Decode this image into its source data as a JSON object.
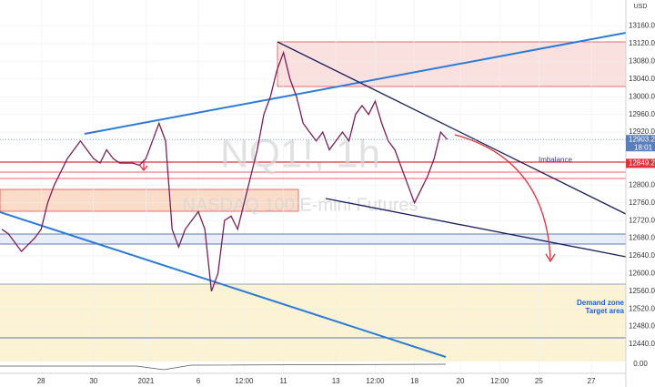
{
  "chart_data": {
    "type": "line",
    "currency": "USD",
    "watermark_symbol": "NQ1!, 1h",
    "watermark_name": "NASDAQ 100 E-mini Futures",
    "annotations": [
      "Imbalance",
      "Demand zone",
      "Target area"
    ],
    "last_price_label": "12903.25",
    "countdown": "18:01",
    "level_label": "12849.25",
    "indicator_label": "0.00",
    "categories": [
      null,
      null,
      null,
      null,
      null,
      null,
      "28",
      null,
      null,
      null,
      null,
      null,
      null,
      null,
      "30",
      null,
      null,
      null,
      null,
      null,
      null,
      null,
      "2021",
      null,
      null,
      null,
      null,
      null,
      null,
      null,
      "6",
      null,
      null,
      null,
      null,
      null,
      null,
      "12:00",
      null,
      null,
      null,
      null,
      null,
      "11",
      null,
      null,
      null,
      null,
      null,
      null,
      null,
      "13",
      null,
      null,
      null,
      null,
      null,
      "12:00",
      null,
      null,
      null,
      null,
      null,
      "18",
      null,
      null,
      null,
      null,
      null,
      null,
      "20",
      null,
      null,
      null,
      null,
      null,
      "12:00",
      null,
      null,
      null,
      null,
      null,
      "25",
      null,
      null,
      null,
      null,
      null,
      null,
      null,
      "27",
      null,
      null,
      null,
      null,
      null
    ],
    "series": [
      {
        "color": "#7b1e5a",
        "values": [
          12700,
          12690,
          12670,
          12650,
          12665,
          12680,
          12700,
          12760,
          12800,
          12830,
          12860,
          12880,
          12900,
          12880,
          12860,
          12850,
          12880,
          12860,
          12850,
          12850,
          12850,
          12845,
          12860,
          12900,
          12940,
          12900,
          12700,
          12660,
          12700,
          12720,
          12740,
          12700,
          12560,
          12600,
          12720,
          12730,
          12700,
          12760,
          12820,
          12880,
          12960,
          13000,
          13060,
          13100,
          13040,
          13000,
          12940,
          12920,
          12900,
          12920,
          12880,
          12900,
          12920,
          12900,
          12960,
          12980,
          12960,
          12990,
          12940,
          12900,
          12880,
          12840,
          12800,
          12760,
          12790,
          12820,
          12860,
          12920,
          12903.25,
          null,
          null,
          null,
          null,
          null,
          null,
          null,
          null,
          null,
          null,
          null,
          null,
          null,
          null,
          null,
          null,
          null,
          null,
          null,
          null,
          null,
          null,
          null,
          null,
          null,
          null,
          null
        ]
      }
    ],
    "ylim": [
      12405,
      13219
    ],
    "yticks": [
      {
        "value": 12440,
        "label": "12440.00"
      },
      {
        "value": 12480,
        "label": "12480.00"
      },
      {
        "value": 12520,
        "label": "12520.00"
      },
      {
        "value": 12560,
        "label": "12560.00"
      },
      {
        "value": 12600,
        "label": "12600.00"
      },
      {
        "value": 12640,
        "label": "12640.00"
      },
      {
        "value": 12680,
        "label": "12680.00"
      },
      {
        "value": 12720,
        "label": "12720.00"
      },
      {
        "value": 12760,
        "label": "12760.00"
      },
      {
        "value": 12800,
        "label": "12800.00"
      },
      {
        "value": 12920,
        "label": "12920.00"
      },
      {
        "value": 12960,
        "label": "12960.00"
      },
      {
        "value": 13000,
        "label": "13000.00"
      },
      {
        "value": 13040,
        "label": "13040.00"
      },
      {
        "value": 13080,
        "label": "13080.00"
      },
      {
        "value": 13120,
        "label": "13120.00"
      },
      {
        "value": 13160,
        "label": "13160.00"
      }
    ],
    "last_price": 12903.25,
    "level": 12849.25,
    "grid": true
  }
}
